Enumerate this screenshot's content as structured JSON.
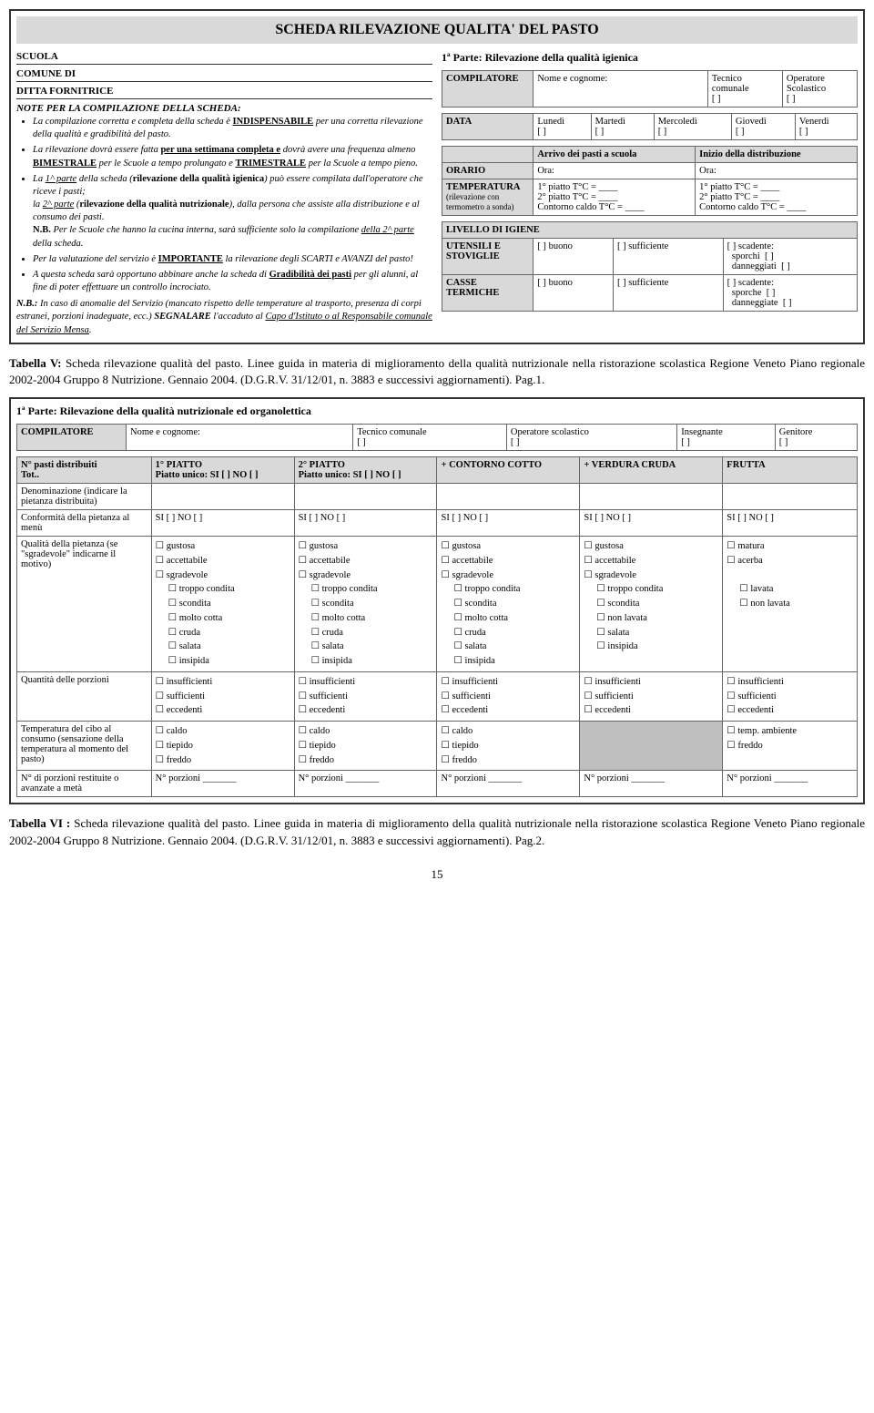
{
  "sheet1": {
    "title": "SCHEDA RILEVAZIONE QUALITA' DEL PASTO",
    "fields": {
      "scuola": "SCUOLA",
      "comune": "COMUNE DI",
      "ditta": "DITTA FORNITRICE"
    },
    "notesHeader": "NOTE PER LA COMPILAZIONE DELLA SCHEDA:",
    "notes": [
      "La compilazione corretta e completa della scheda è <b class='underline'>INDISPENSABILE</b> per una corretta rilevazione della qualità e gradibilità del pasto.",
      "La rilevazione dovrà essere fatta <b class='underline'>per una settimana completa e</b> dovrà avere una frequenza almeno <b class='underline'>BIMESTRALE</b> per le Scuole a tempo prolungato e <b class='underline'>TRIMESTRALE</b> per la Scuole a tempo pieno.",
      "<i>La <span class='underline'>1^ parte</span> della scheda (<b>rilevazione della qualità igienica</b>) può essere compilata dall'operatore che riceve i pasti;</i><br>la <span class='underline'>2^ parte</span> (<b>rilevazione della qualità nutrizionale</b>), dalla persona che assiste alla distribuzione e al consumo dei pasti.<br><b>N.B.</b> Per le Scuole che hanno la cucina interna, sarà sufficiente solo la compilazione <span class='underline'>della 2^ parte</span> della scheda.",
      "Per la valutazione del servizio è <b class='underline'>IMPORTANTE</b> la rilevazione degli SCARTI e AVANZI del pasto!",
      "A questa scheda sarà opportuno abbinare anche la scheda di <b class='underline'>Gradibilità dei pasti</b> per gli alunni, al fine di poter effettuare un controllo incrociato."
    ],
    "nb": "<b>N.B.:</b> <i>In caso di anomalie del Servizio (mancato rispetto delle temperature al trasporto, presenza di corpi estranei, porzioni inadeguate, ecc.)</i> <b>SEGNALARE</b> <i>l'accaduto al <span class='underline'>Capo d'Istituto o al Responsabile comunale del Servizio Mensa</span>.</i>",
    "parte1": "1ª Parte: Rilevazione della qualità igienica",
    "compilatore": {
      "label": "COMPILATORE",
      "nome": "Nome e cognome:",
      "tecnico": "Tecnico comunale",
      "operatore": "Operatore Scolastico"
    },
    "data": {
      "label": "DATA",
      "days": [
        "Lunedì",
        "Martedì",
        "Mercoledì",
        "Giovedì",
        "Venerdì"
      ]
    },
    "orario": {
      "label": "ORARIO",
      "arrivo": "Arrivo dei pasti a scuola",
      "inizio": "Inizio della distribuzione",
      "ora": "Ora:"
    },
    "temperatura": {
      "label": "TEMPERATURA",
      "sub": "(rilevazione con termometro a sonda)",
      "p1": "1° piatto   T°C = ____",
      "p2": "2° piatto   T°C = ____",
      "cc": "Contorno caldo T°C = ____"
    },
    "igiene": {
      "livello": "LIVELLO DI IGIENE",
      "utensili": "UTENSILI E STOVIGLIE",
      "casse": "CASSE TERMICHE",
      "buono": "buono",
      "sufficiente": "sufficiente",
      "scadente": "scadente:",
      "sporchi": "sporchi",
      "danneggiati": "danneggiati",
      "sporche": "sporche",
      "danneggiate": "danneggiate"
    }
  },
  "caption1": "<b>Tabella V:</b> Scheda rilevazione qualità del pasto. Linee guida in materia di miglioramento della qualità nutrizionale nella ristorazione scolastica Regione Veneto Piano regionale 2002-2004 Gruppo 8 Nutrizione. Gennaio 2004. (D.G.R.V. 31/12/01, n. 3883 e successivi aggiornamenti). Pag.1.",
  "sheet2": {
    "parte": "1ª Parte: Rilevazione della qualità nutrizionale ed organolettica",
    "comp": {
      "label": "COMPILATORE",
      "nome": "Nome e cognome:",
      "roles": [
        "Tecnico comunale",
        "Operatore scolastico",
        "Insegnante",
        "Genitore"
      ]
    },
    "cols": {
      "npasti": "N° pasti distribuiti",
      "tot": "Tot..",
      "p1": "1° PIATTO",
      "p1s": "Piatto unico: SI [ ]  NO [ ]",
      "p2": "2° PIATTO",
      "p2s": "Piatto unico: SI [ ]  NO [ ]",
      "contorno": "+ CONTORNO COTTO",
      "verdura": "+ VERDURA CRUDA",
      "frutta": "FRUTTA"
    },
    "rows": {
      "denom": "Denominazione (indicare la pietanza distribuita)",
      "conf": "Conformità della pietanza al menù",
      "qual": "Qualità della pietanza (se \"sgradevole\" indicarne il motivo)",
      "quant": "Quantità delle porzioni",
      "temp": "Temperatura del cibo al consumo (sensazione della temperatura al momento del pasto)",
      "rest": "N° di porzioni restituite o avanzate a metà"
    },
    "sino": "SI [ ]  NO [ ]",
    "qualOpts": [
      "gustosa",
      "accettabile",
      "sgradevole",
      "troppo condita",
      "scondita",
      "molto cotta",
      "cruda",
      "salata",
      "insipida"
    ],
    "qualVerdura": [
      "gustosa",
      "accettabile",
      "sgradevole",
      "troppo condita",
      "scondita",
      "non lavata",
      "salata",
      "insipida"
    ],
    "qualFrutta": [
      "matura",
      "acerba",
      "",
      "lavata",
      "non lavata"
    ],
    "quantOpts": [
      "insufficienti",
      "sufficienti",
      "eccedenti"
    ],
    "tempOpts": [
      "caldo",
      "tiepido",
      "freddo"
    ],
    "tempFrutta": [
      "temp. ambiente",
      "freddo"
    ],
    "nporz": "N° porzioni _______"
  },
  "caption2": "<b>Tabella VI :</b> Scheda rilevazione qualità del pasto. Linee guida in materia di miglioramento della qualità nutrizionale nella ristorazione scolastica Regione Veneto Piano regionale 2002-2004 Gruppo 8 Nutrizione. Gennaio 2004. (D.G.R.V. 31/12/01, n. 3883 e successivi aggiornamenti). Pag.2.",
  "pagenum": "15"
}
